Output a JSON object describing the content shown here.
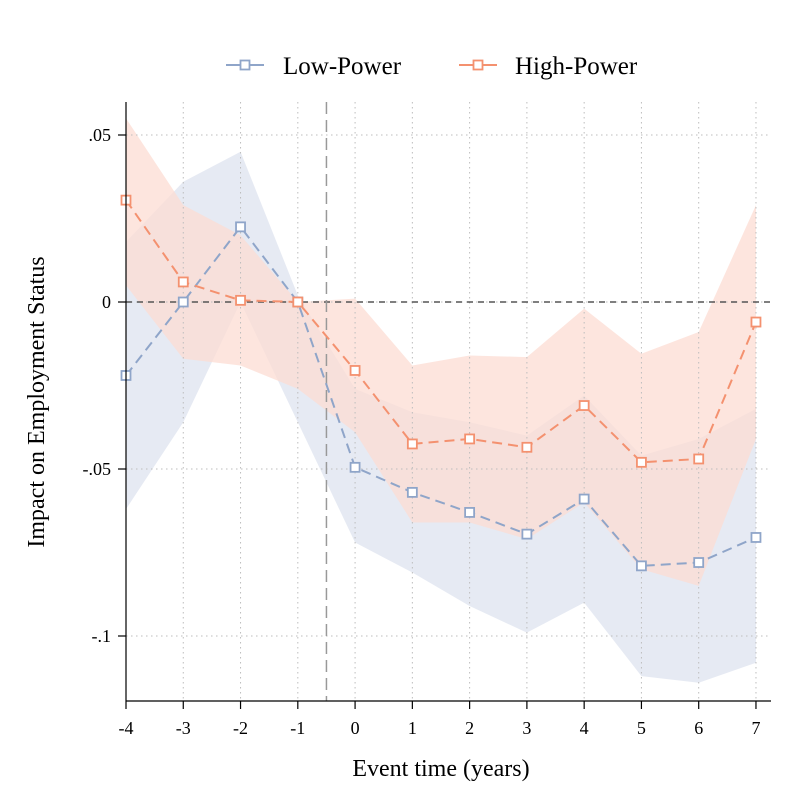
{
  "chart_data": {
    "type": "line",
    "title": "",
    "xlabel": "Event time (years)",
    "ylabel": "Impact on Employment Status",
    "x": [
      -4,
      -3,
      -2,
      -1,
      0,
      1,
      2,
      3,
      4,
      5,
      6,
      7
    ],
    "xticks": [
      "-4",
      "-3",
      "-2",
      "-1",
      "0",
      "1",
      "2",
      "3",
      "4",
      "5",
      "6",
      "7"
    ],
    "yticks": [
      {
        "value": 0.05,
        "label": ".05"
      },
      {
        "value": 0,
        "label": "0"
      },
      {
        "value": -0.05,
        "label": "-.05"
      },
      {
        "value": -0.1,
        "label": "-.1"
      }
    ],
    "xlim": [
      -4,
      7
    ],
    "ylim": [
      -0.12,
      0.06
    ],
    "grid": true,
    "legend_position": "top",
    "reference_lines": {
      "y": 0,
      "x": -0.5
    },
    "series": [
      {
        "name": "Low-Power",
        "color": "#8fa5c9",
        "band_color": "#dde3ef",
        "values": [
          -0.022,
          0.0,
          0.0225,
          0.0,
          -0.0495,
          -0.057,
          -0.063,
          -0.0695,
          -0.059,
          -0.079,
          -0.078,
          -0.0705
        ],
        "ci_upper": [
          0.018,
          0.036,
          0.045,
          0.002,
          -0.026,
          -0.033,
          -0.036,
          -0.04,
          -0.028,
          -0.046,
          -0.041,
          -0.032
        ],
        "ci_lower": [
          -0.062,
          -0.036,
          0.0,
          -0.036,
          -0.072,
          -0.081,
          -0.091,
          -0.099,
          -0.09,
          -0.112,
          -0.114,
          -0.108
        ]
      },
      {
        "name": "High-Power",
        "color": "#f4916f",
        "band_color": "#fcdcd3",
        "values": [
          0.0305,
          0.006,
          0.0005,
          0.0,
          -0.0205,
          -0.0425,
          -0.041,
          -0.0435,
          -0.031,
          -0.048,
          -0.047,
          -0.006
        ],
        "ci_upper": [
          0.055,
          0.029,
          0.02,
          0.0,
          0.001,
          -0.019,
          -0.016,
          -0.0165,
          -0.002,
          -0.0155,
          -0.009,
          0.029
        ],
        "ci_lower": [
          0.005,
          -0.017,
          -0.019,
          -0.026,
          -0.039,
          -0.066,
          -0.066,
          -0.071,
          -0.06,
          -0.08,
          -0.085,
          -0.041
        ]
      }
    ]
  }
}
